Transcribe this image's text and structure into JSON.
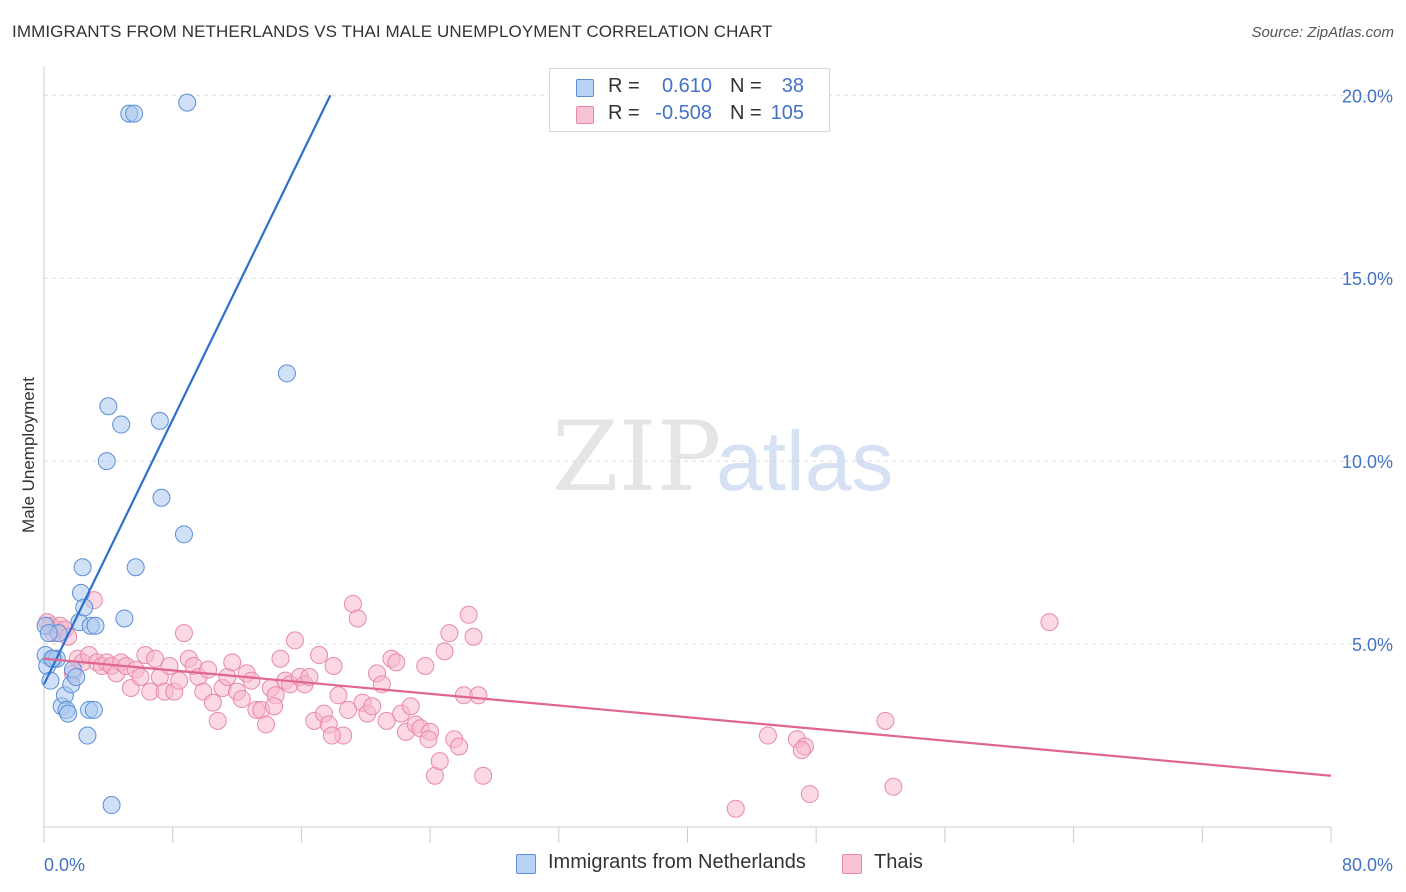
{
  "header": {
    "title": "IMMIGRANTS FROM NETHERLANDS VS THAI MALE UNEMPLOYMENT CORRELATION CHART",
    "source": "Source: ZipAtlas.com"
  },
  "watermark": {
    "zip": "ZIP",
    "atlas": "atlas"
  },
  "legend": {
    "rows": [
      {
        "r_label": "R =",
        "r_value": "0.610",
        "n_label": "N =",
        "n_value": "38"
      },
      {
        "r_label": "R =",
        "r_value": "-0.508",
        "n_label": "N =",
        "n_value": "105"
      }
    ]
  },
  "bottom_legend": {
    "items": [
      {
        "label": "Immigrants from Netherlands"
      },
      {
        "label": "Thais"
      }
    ]
  },
  "colors": {
    "blue_fill": "#aac8f0",
    "blue_stroke": "#5b8fd6",
    "blue_line": "#2f6fcb",
    "pink_fill": "#f7b8cc",
    "pink_stroke": "#e88aa8",
    "pink_line": "#e0658f",
    "axis_text": "#4472c4",
    "grid": "#dddddd"
  },
  "chart_data": {
    "type": "scatter",
    "title": "IMMIGRANTS FROM NETHERLANDS VS THAI MALE UNEMPLOYMENT CORRELATION CHART",
    "xlabel": "",
    "ylabel": "Male Unemployment",
    "xlim": [
      0,
      80
    ],
    "ylim": [
      0,
      20.5
    ],
    "x_ticks": [
      "0.0%",
      "80.0%"
    ],
    "y_ticks": [
      {
        "value": 5,
        "label": "5.0%"
      },
      {
        "value": 10,
        "label": "10.0%"
      },
      {
        "value": 15,
        "label": "15.0%"
      },
      {
        "value": 20,
        "label": "20.0%"
      }
    ],
    "grid": "horizontal dashed",
    "legend_position": "top-center",
    "series": [
      {
        "name": "Immigrants from Netherlands",
        "color": "blue",
        "points": [
          [
            0.1,
            5.5
          ],
          [
            0.1,
            4.7
          ],
          [
            0.2,
            4.4
          ],
          [
            0.4,
            4.0
          ],
          [
            0.6,
            4.6
          ],
          [
            0.8,
            4.6
          ],
          [
            0.9,
            5.3
          ],
          [
            1.1,
            3.3
          ],
          [
            1.3,
            3.6
          ],
          [
            1.4,
            3.2
          ],
          [
            1.5,
            3.1
          ],
          [
            1.7,
            3.9
          ],
          [
            1.8,
            4.3
          ],
          [
            2.0,
            4.1
          ],
          [
            2.2,
            5.6
          ],
          [
            2.3,
            6.4
          ],
          [
            2.4,
            7.1
          ],
          [
            2.5,
            6.0
          ],
          [
            2.7,
            2.5
          ],
          [
            2.8,
            3.2
          ],
          [
            2.9,
            5.5
          ],
          [
            3.1,
            3.2
          ],
          [
            3.2,
            5.5
          ],
          [
            3.9,
            10.0
          ],
          [
            4.0,
            11.5
          ],
          [
            4.2,
            0.6
          ],
          [
            4.8,
            11.0
          ],
          [
            5.0,
            5.7
          ],
          [
            5.7,
            7.1
          ],
          [
            5.3,
            19.5
          ],
          [
            5.6,
            19.5
          ],
          [
            7.2,
            11.1
          ],
          [
            7.3,
            9.0
          ],
          [
            8.7,
            8.0
          ],
          [
            8.9,
            19.8
          ],
          [
            15.1,
            12.4
          ],
          [
            0.3,
            5.3
          ],
          [
            0.5,
            4.6
          ]
        ],
        "trend": {
          "x": [
            0.0,
            17.8
          ],
          "y": [
            3.9,
            20.0
          ]
        }
      },
      {
        "name": "Thais",
        "color": "pink",
        "points": [
          [
            0.2,
            5.6
          ],
          [
            0.4,
            5.5
          ],
          [
            0.6,
            5.3
          ],
          [
            0.8,
            5.4
          ],
          [
            1.0,
            5.5
          ],
          [
            1.3,
            5.4
          ],
          [
            1.5,
            5.2
          ],
          [
            1.8,
            4.2
          ],
          [
            2.1,
            4.6
          ],
          [
            2.4,
            4.5
          ],
          [
            2.8,
            4.7
          ],
          [
            3.1,
            6.2
          ],
          [
            3.3,
            4.5
          ],
          [
            3.6,
            4.4
          ],
          [
            3.9,
            4.5
          ],
          [
            4.2,
            4.4
          ],
          [
            4.5,
            4.2
          ],
          [
            4.8,
            4.5
          ],
          [
            5.1,
            4.4
          ],
          [
            5.4,
            3.8
          ],
          [
            5.7,
            4.3
          ],
          [
            6.0,
            4.1
          ],
          [
            6.3,
            4.7
          ],
          [
            6.6,
            3.7
          ],
          [
            6.9,
            4.6
          ],
          [
            7.2,
            4.1
          ],
          [
            7.5,
            3.7
          ],
          [
            7.8,
            4.4
          ],
          [
            8.1,
            3.7
          ],
          [
            8.4,
            4.0
          ],
          [
            8.7,
            5.3
          ],
          [
            9.0,
            4.6
          ],
          [
            9.3,
            4.4
          ],
          [
            9.6,
            4.1
          ],
          [
            9.9,
            3.7
          ],
          [
            10.2,
            4.3
          ],
          [
            10.5,
            3.4
          ],
          [
            10.8,
            2.9
          ],
          [
            11.1,
            3.8
          ],
          [
            11.4,
            4.1
          ],
          [
            11.7,
            4.5
          ],
          [
            12.0,
            3.7
          ],
          [
            12.3,
            3.5
          ],
          [
            12.6,
            4.2
          ],
          [
            12.9,
            4.0
          ],
          [
            13.2,
            3.2
          ],
          [
            13.5,
            3.2
          ],
          [
            13.8,
            2.8
          ],
          [
            14.1,
            3.8
          ],
          [
            14.4,
            3.6
          ],
          [
            14.7,
            4.6
          ],
          [
            15.0,
            4.0
          ],
          [
            15.3,
            3.9
          ],
          [
            15.6,
            5.1
          ],
          [
            15.9,
            4.1
          ],
          [
            16.2,
            3.9
          ],
          [
            16.5,
            4.1
          ],
          [
            16.8,
            2.9
          ],
          [
            17.1,
            4.7
          ],
          [
            17.4,
            3.1
          ],
          [
            17.7,
            2.8
          ],
          [
            18.0,
            4.4
          ],
          [
            18.3,
            3.6
          ],
          [
            18.6,
            2.5
          ],
          [
            18.9,
            3.2
          ],
          [
            19.2,
            6.1
          ],
          [
            19.5,
            5.7
          ],
          [
            19.8,
            3.4
          ],
          [
            20.1,
            3.1
          ],
          [
            20.4,
            3.3
          ],
          [
            20.7,
            4.2
          ],
          [
            21.0,
            3.9
          ],
          [
            21.3,
            2.9
          ],
          [
            21.6,
            4.6
          ],
          [
            21.9,
            4.5
          ],
          [
            22.2,
            3.1
          ],
          [
            22.5,
            2.6
          ],
          [
            22.8,
            3.3
          ],
          [
            23.1,
            2.8
          ],
          [
            23.4,
            2.7
          ],
          [
            23.7,
            4.4
          ],
          [
            24.0,
            2.6
          ],
          [
            24.3,
            1.4
          ],
          [
            24.6,
            1.8
          ],
          [
            24.9,
            4.8
          ],
          [
            25.2,
            5.3
          ],
          [
            25.5,
            2.4
          ],
          [
            25.8,
            2.2
          ],
          [
            26.1,
            3.6
          ],
          [
            26.4,
            5.8
          ],
          [
            26.7,
            5.2
          ],
          [
            27.0,
            3.6
          ],
          [
            27.3,
            1.4
          ],
          [
            43.0,
            0.5
          ],
          [
            45.0,
            2.5
          ],
          [
            46.8,
            2.4
          ],
          [
            47.3,
            2.2
          ],
          [
            47.6,
            0.9
          ],
          [
            52.3,
            2.9
          ],
          [
            52.8,
            1.1
          ],
          [
            62.5,
            5.6
          ],
          [
            47.1,
            2.1
          ],
          [
            23.9,
            2.4
          ],
          [
            17.9,
            2.5
          ],
          [
            14.3,
            3.3
          ]
        ],
        "trend": {
          "x": [
            0.0,
            80.0
          ],
          "y": [
            4.6,
            1.4
          ]
        }
      }
    ]
  }
}
